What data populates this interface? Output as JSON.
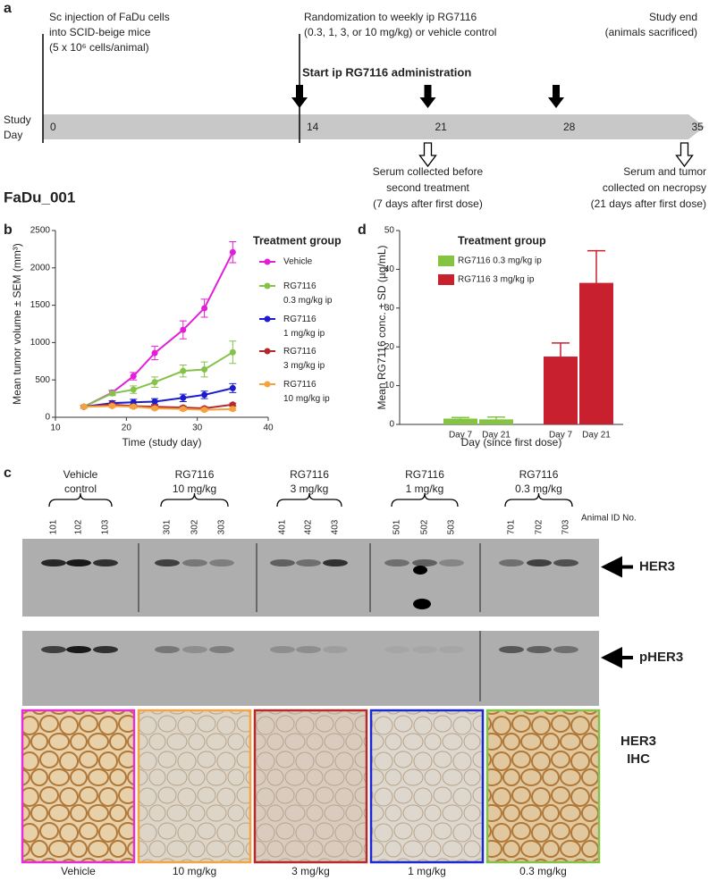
{
  "panel_a": {
    "label": "a",
    "injection": [
      "Sc injection of FaDu cells",
      "into SCID-beige mice",
      "(5 x 10⁶ cells/animal)"
    ],
    "randomization": [
      "Randomization to weekly ip RG7116",
      "(0.3, 1, 3, or 10 mg/kg) or vehicle control"
    ],
    "start": "Start ip RG7116 administration",
    "study_end": [
      "Study end",
      "(animals sacrificed)"
    ],
    "axis_label": [
      "Study",
      "Day"
    ],
    "days": [
      0,
      14,
      21,
      28,
      35
    ],
    "serum_first": [
      "Serum collected before",
      "second treatment",
      "(7 days after first dose)"
    ],
    "serum_end": [
      "Serum and tumor",
      "collected on necropsy",
      "(21 days after first dose)"
    ],
    "study_id": "FaDu_001"
  },
  "chart_data": [
    {
      "type": "line",
      "panel_label": "b",
      "x_label": "Time (study day)",
      "y_label": "Mean tumor volume ± SEM (mm³)",
      "legend_title": "Treatment group",
      "x": [
        14,
        18,
        21,
        24,
        28,
        31,
        35
      ],
      "xlim": [
        10,
        40
      ],
      "xticks": [
        10,
        20,
        30,
        40
      ],
      "ylim": [
        0,
        2500
      ],
      "yticks": [
        0,
        500,
        1000,
        1500,
        2000,
        2500
      ],
      "series": [
        {
          "name": "Vehicle",
          "color": "#e21fd6",
          "values": [
            140,
            330,
            550,
            860,
            1170,
            1460,
            2210
          ],
          "errors": [
            20,
            30,
            50,
            90,
            120,
            120,
            140
          ]
        },
        {
          "name": "RG7116 0.3 mg/kg ip",
          "color": "#86c14b",
          "values": [
            140,
            320,
            370,
            470,
            620,
            640,
            870
          ],
          "errors": [
            20,
            30,
            50,
            70,
            80,
            100,
            150
          ]
        },
        {
          "name": "RG7116 1 mg/kg ip",
          "color": "#1c1ccf",
          "values": [
            140,
            190,
            200,
            210,
            260,
            300,
            390
          ],
          "errors": [
            20,
            30,
            40,
            40,
            50,
            50,
            60
          ]
        },
        {
          "name": "RG7116 3 mg/kg ip",
          "color": "#b3282c",
          "values": [
            140,
            170,
            150,
            140,
            130,
            120,
            170
          ],
          "errors": [
            20,
            20,
            20,
            20,
            20,
            20,
            20
          ]
        },
        {
          "name": "RG7116 10 mg/kg ip",
          "color": "#f4a23f",
          "values": [
            140,
            150,
            140,
            120,
            110,
            100,
            110
          ],
          "errors": [
            20,
            20,
            20,
            20,
            20,
            20,
            20
          ]
        }
      ]
    },
    {
      "type": "bar",
      "panel_label": "d",
      "x_label": "Day (since first dose)",
      "y_label": "Mean RG7116 conc. ± SD (µg/mL)",
      "legend_title": "Treatment group",
      "categories": [
        "Day 7",
        "Day 21",
        "Day 7",
        "Day 21"
      ],
      "ylim": [
        0,
        50
      ],
      "yticks": [
        0,
        10,
        20,
        30,
        40,
        50
      ],
      "series": [
        {
          "name": "RG7116 0.3 mg/kg ip",
          "color": "#84c441",
          "values": [
            1.5,
            1.3,
            null,
            null
          ],
          "errors": [
            0.3,
            0.6,
            null,
            null
          ]
        },
        {
          "name": "RG7116 3 mg/kg ip",
          "color": "#c8202e",
          "values": [
            null,
            null,
            17.5,
            36.5
          ],
          "errors": [
            null,
            null,
            3.5,
            8.3
          ]
        }
      ]
    }
  ],
  "panel_c": {
    "label": "c",
    "groups": [
      [
        "Vehicle",
        "control"
      ],
      [
        "RG7116",
        "10 mg/kg"
      ],
      [
        "RG7116",
        "3 mg/kg"
      ],
      [
        "RG7116",
        "1 mg/kg"
      ],
      [
        "RG7116",
        "0.3 mg/kg"
      ]
    ],
    "animal_ids": [
      "101",
      "102",
      "103",
      "301",
      "302",
      "303",
      "401",
      "402",
      "403",
      "501",
      "502",
      "503",
      "701",
      "702",
      "703"
    ],
    "animal_id_label": "Animal ID No.",
    "blots": [
      "HER3",
      "pHER3"
    ],
    "ihc_label": [
      "HER3",
      "IHC"
    ],
    "ihc_captions": [
      "Vehicle",
      "10 mg/kg",
      "3 mg/kg",
      "1 mg/kg",
      "0.3 mg/kg"
    ]
  }
}
